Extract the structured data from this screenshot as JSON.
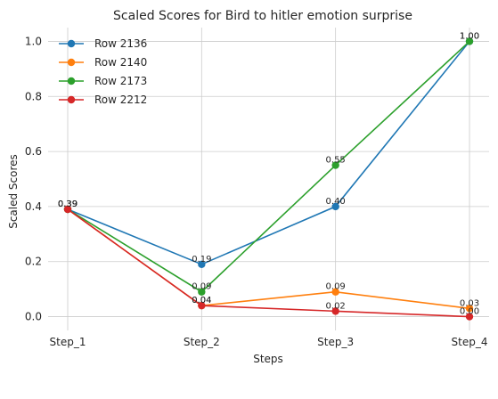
{
  "chart_data": {
    "type": "line",
    "title": "Scaled Scores for Bird to hitler emotion surprise",
    "xlabel": "Steps",
    "ylabel": "Scaled Scores",
    "categories": [
      "Step_1",
      "Step_2",
      "Step_3",
      "Step_4"
    ],
    "yticks": [
      "0.0",
      "0.2",
      "0.4",
      "0.6",
      "0.8",
      "1.0"
    ],
    "ylim": [
      -0.05,
      1.05
    ],
    "grid": true,
    "legend_position": "top-left",
    "series": [
      {
        "name": "Row 2136",
        "color": "#1f77b4",
        "values": [
          0.39,
          0.19,
          0.4,
          1.0
        ],
        "labels": [
          "0.39",
          "0.19",
          "0.40",
          "1.00"
        ]
      },
      {
        "name": "Row 2140",
        "color": "#ff7f0e",
        "values": [
          0.39,
          0.04,
          0.09,
          0.03
        ],
        "labels": [
          "0.39",
          "0.04",
          "0.09",
          "0.03"
        ]
      },
      {
        "name": "Row 2173",
        "color": "#2ca02c",
        "values": [
          0.39,
          0.09,
          0.55,
          1.0
        ],
        "labels": [
          "0.39",
          "0.09",
          "0.55",
          "1.00"
        ]
      },
      {
        "name": "Row 2212",
        "color": "#d62728",
        "values": [
          0.39,
          0.04,
          0.02,
          0.0
        ],
        "labels": [
          "0.39",
          "0.04",
          "0.02",
          "0.00"
        ]
      }
    ]
  }
}
